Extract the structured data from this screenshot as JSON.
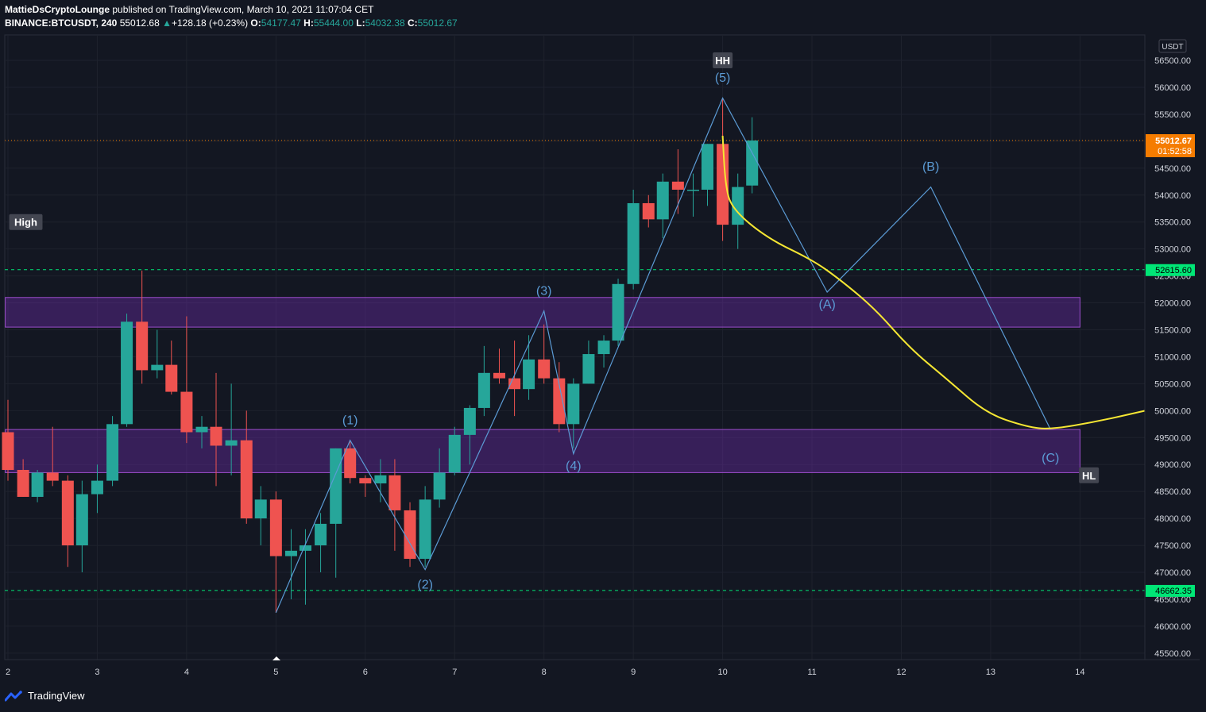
{
  "header": {
    "author": "MattieDsCryptoLounge",
    "published_text": "published on TradingView.com, March 10, 2021 11:07:04 CET",
    "symbol": "BINANCE:BTCUSDT, 240",
    "last_price": "55012.68",
    "change": "+128.18 (+0.23%)",
    "open_label": "O:",
    "open": "54177.47",
    "high_label": "H:",
    "high": "55444.00",
    "low_label": "L:",
    "low": "54032.38",
    "close_label": "C:",
    "close": "55012.67"
  },
  "footer": {
    "brand": "TradingView"
  },
  "colors": {
    "background": "#131722",
    "up": "#26a69a",
    "down": "#ef5350",
    "wave": "#5b9bd5",
    "forecast": "#f5e633",
    "zone": "#7b2fbf",
    "level": "#00e676",
    "price": "#f57c00"
  },
  "chart_data": {
    "type": "candlestick",
    "currency": "USDT",
    "ylim": [
      45300,
      56900
    ],
    "y_ticks": [
      "56500.00",
      "56000.00",
      "55500.00",
      "55000.00",
      "54500.00",
      "54000.00",
      "53500.00",
      "53000.00",
      "52500.00",
      "52000.00",
      "51500.00",
      "51000.00",
      "50500.00",
      "50000.00",
      "49500.00",
      "49000.00",
      "48500.00",
      "48000.00",
      "47500.00",
      "47000.00",
      "46500.00",
      "46000.00",
      "45500.00"
    ],
    "x_ticks": [
      "2",
      "3",
      "4",
      "5",
      "6",
      "7",
      "8",
      "9",
      "10",
      "11",
      "12",
      "13",
      "14"
    ],
    "candles": [
      {
        "t": 2.0,
        "o": 49600,
        "h": 50200,
        "l": 48700,
        "c": 48900
      },
      {
        "t": 2.17,
        "o": 48900,
        "h": 49100,
        "l": 48400,
        "c": 48400
      },
      {
        "t": 2.33,
        "o": 48400,
        "h": 48900,
        "l": 48300,
        "c": 48850
      },
      {
        "t": 2.5,
        "o": 48850,
        "h": 49700,
        "l": 48600,
        "c": 48700
      },
      {
        "t": 2.67,
        "o": 48700,
        "h": 48800,
        "l": 47100,
        "c": 47500
      },
      {
        "t": 2.83,
        "o": 47500,
        "h": 48700,
        "l": 47000,
        "c": 48450
      },
      {
        "t": 3.0,
        "o": 48450,
        "h": 49000,
        "l": 48100,
        "c": 48700
      },
      {
        "t": 3.17,
        "o": 48700,
        "h": 49900,
        "l": 48600,
        "c": 49750
      },
      {
        "t": 3.33,
        "o": 49750,
        "h": 51800,
        "l": 49700,
        "c": 51650
      },
      {
        "t": 3.5,
        "o": 51650,
        "h": 52600,
        "l": 50500,
        "c": 50750
      },
      {
        "t": 3.67,
        "o": 50750,
        "h": 51500,
        "l": 50600,
        "c": 50850
      },
      {
        "t": 3.83,
        "o": 50850,
        "h": 51300,
        "l": 50300,
        "c": 50350
      },
      {
        "t": 4.0,
        "o": 50350,
        "h": 51750,
        "l": 49400,
        "c": 49600
      },
      {
        "t": 4.17,
        "o": 49600,
        "h": 49900,
        "l": 49300,
        "c": 49700
      },
      {
        "t": 4.33,
        "o": 49700,
        "h": 50700,
        "l": 48600,
        "c": 49350
      },
      {
        "t": 4.5,
        "o": 49350,
        "h": 50500,
        "l": 48800,
        "c": 49450
      },
      {
        "t": 4.67,
        "o": 49450,
        "h": 50000,
        "l": 47900,
        "c": 48000
      },
      {
        "t": 4.83,
        "o": 48000,
        "h": 48600,
        "l": 47500,
        "c": 48350
      },
      {
        "t": 5.0,
        "o": 48350,
        "h": 48500,
        "l": 46250,
        "c": 47300
      },
      {
        "t": 5.17,
        "o": 47300,
        "h": 47800,
        "l": 46500,
        "c": 47400
      },
      {
        "t": 5.33,
        "o": 47400,
        "h": 47800,
        "l": 46400,
        "c": 47500
      },
      {
        "t": 5.5,
        "o": 47500,
        "h": 48100,
        "l": 47000,
        "c": 47900
      },
      {
        "t": 5.67,
        "o": 47900,
        "h": 49300,
        "l": 46900,
        "c": 49300
      },
      {
        "t": 5.83,
        "o": 49300,
        "h": 49450,
        "l": 48650,
        "c": 48750
      },
      {
        "t": 6.0,
        "o": 48750,
        "h": 48800,
        "l": 48400,
        "c": 48650
      },
      {
        "t": 6.17,
        "o": 48650,
        "h": 49100,
        "l": 48300,
        "c": 48800
      },
      {
        "t": 6.33,
        "o": 48800,
        "h": 49100,
        "l": 47400,
        "c": 48150
      },
      {
        "t": 6.5,
        "o": 48150,
        "h": 48300,
        "l": 47100,
        "c": 47250
      },
      {
        "t": 6.67,
        "o": 47250,
        "h": 48600,
        "l": 47100,
        "c": 48350
      },
      {
        "t": 6.83,
        "o": 48350,
        "h": 49300,
        "l": 48200,
        "c": 48850
      },
      {
        "t": 7.0,
        "o": 48850,
        "h": 49700,
        "l": 48800,
        "c": 49550
      },
      {
        "t": 7.17,
        "o": 49550,
        "h": 50100,
        "l": 49000,
        "c": 50050
      },
      {
        "t": 7.33,
        "o": 50050,
        "h": 51200,
        "l": 49900,
        "c": 50700
      },
      {
        "t": 7.5,
        "o": 50700,
        "h": 51150,
        "l": 50500,
        "c": 50600
      },
      {
        "t": 7.67,
        "o": 50600,
        "h": 51300,
        "l": 49900,
        "c": 50400
      },
      {
        "t": 7.83,
        "o": 50400,
        "h": 51400,
        "l": 50200,
        "c": 50950
      },
      {
        "t": 8.0,
        "o": 50950,
        "h": 51600,
        "l": 50500,
        "c": 50600
      },
      {
        "t": 8.17,
        "o": 50600,
        "h": 50900,
        "l": 49600,
        "c": 49750
      },
      {
        "t": 8.33,
        "o": 49750,
        "h": 50600,
        "l": 49300,
        "c": 50500
      },
      {
        "t": 8.5,
        "o": 50500,
        "h": 51300,
        "l": 50500,
        "c": 51050
      },
      {
        "t": 8.67,
        "o": 51050,
        "h": 51400,
        "l": 50800,
        "c": 51300
      },
      {
        "t": 8.83,
        "o": 51300,
        "h": 52450,
        "l": 51200,
        "c": 52350
      },
      {
        "t": 9.0,
        "o": 52350,
        "h": 54100,
        "l": 52250,
        "c": 53850
      },
      {
        "t": 9.17,
        "o": 53850,
        "h": 54000,
        "l": 53400,
        "c": 53550
      },
      {
        "t": 9.33,
        "o": 53550,
        "h": 54400,
        "l": 53200,
        "c": 54250
      },
      {
        "t": 9.5,
        "o": 54250,
        "h": 54850,
        "l": 53650,
        "c": 54100
      },
      {
        "t": 9.67,
        "o": 54100,
        "h": 54400,
        "l": 53600,
        "c": 54100
      },
      {
        "t": 9.83,
        "o": 54100,
        "h": 54950,
        "l": 53800,
        "c": 54950
      },
      {
        "t": 10.0,
        "o": 54950,
        "h": 55800,
        "l": 53150,
        "c": 53450
      },
      {
        "t": 10.17,
        "o": 53450,
        "h": 54400,
        "l": 53000,
        "c": 54150
      },
      {
        "t": 10.33,
        "o": 54177.47,
        "h": 55444,
        "l": 54032.38,
        "c": 55012.67
      }
    ],
    "wave_labels": [
      {
        "text": "(1)",
        "t": 5.83,
        "v": 49750
      },
      {
        "text": "(2)",
        "t": 6.67,
        "v": 46700
      },
      {
        "text": "(3)",
        "t": 8.0,
        "v": 52150
      },
      {
        "text": "(4)",
        "t": 8.33,
        "v": 48900
      },
      {
        "text": "(5)",
        "t": 10.0,
        "v": 56100
      },
      {
        "text": "(A)",
        "t": 11.17,
        "v": 51900
      },
      {
        "text": "(B)",
        "t": 12.33,
        "v": 54450
      },
      {
        "text": "(C)",
        "t": 13.67,
        "v": 49050
      }
    ],
    "wave_path": [
      {
        "t": 5.0,
        "v": 46250
      },
      {
        "t": 5.83,
        "v": 49450
      },
      {
        "t": 6.67,
        "v": 47050
      },
      {
        "t": 8.0,
        "v": 51850
      },
      {
        "t": 8.33,
        "v": 49200
      },
      {
        "t": 10.0,
        "v": 55800
      },
      {
        "t": 11.17,
        "v": 52200
      },
      {
        "t": 12.33,
        "v": 54150
      },
      {
        "t": 13.67,
        "v": 49650
      }
    ],
    "forecast_curve": [
      {
        "t": 10.0,
        "v": 55100
      },
      {
        "t": 10.03,
        "v": 54200
      },
      {
        "t": 10.1,
        "v": 53750
      },
      {
        "t": 10.5,
        "v": 53200
      },
      {
        "t": 11.0,
        "v": 52800
      },
      {
        "t": 11.3,
        "v": 52450
      },
      {
        "t": 11.7,
        "v": 51900
      },
      {
        "t": 12.1,
        "v": 51150
      },
      {
        "t": 12.5,
        "v": 50600
      },
      {
        "t": 12.95,
        "v": 49950
      },
      {
        "t": 13.4,
        "v": 49700
      },
      {
        "t": 13.67,
        "v": 49650
      },
      {
        "t": 14.2,
        "v": 49800
      },
      {
        "t": 14.73,
        "v": 50000
      }
    ],
    "zones": [
      {
        "from_t": 1.97,
        "to_t": 14.0,
        "top": 52100,
        "bottom": 51550
      },
      {
        "from_t": 1.97,
        "to_t": 14.0,
        "top": 49650,
        "bottom": 48850
      }
    ],
    "levels": [
      {
        "value": 52615.6,
        "label": "52615.60"
      },
      {
        "value": 46662.35,
        "label": "46662.35"
      }
    ],
    "current_price": {
      "value": 55012.67,
      "label": "55012.67",
      "countdown": "01:52:58"
    },
    "tags": [
      {
        "text": "HH",
        "t": 10.0,
        "v": 56500
      },
      {
        "text": "High",
        "t": 2.2,
        "v": 53500
      },
      {
        "text": "HL",
        "t": 14.1,
        "v": 48800
      }
    ]
  }
}
